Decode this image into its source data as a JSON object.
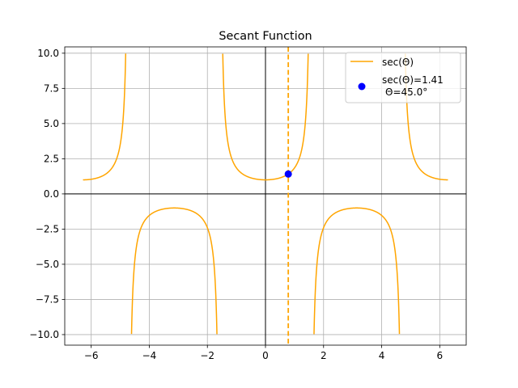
{
  "chart_data": {
    "type": "line",
    "title": "Secant Function",
    "xlabel": "",
    "ylabel": "",
    "xlim": [
      -6.911,
      6.911
    ],
    "ylim": [
      -10.75,
      10.45
    ],
    "grid": true,
    "legend_position": "top-right",
    "x_ticks": [
      -6,
      -4,
      -2,
      0,
      2,
      4,
      6
    ],
    "x_tick_labels": [
      "−6",
      "−4",
      "−2",
      "0",
      "2",
      "4",
      "6"
    ],
    "y_ticks": [
      10,
      7.5,
      5,
      2.5,
      0,
      -2.5,
      -5,
      -7.5,
      -10
    ],
    "y_tick_labels": [
      "10.0",
      "7.5",
      "5.0",
      "2.5",
      "0.0",
      "−2.5",
      "−5.0",
      "−7.5",
      "−10.0"
    ],
    "series": [
      {
        "name": "sec(Θ)",
        "function": "sec",
        "x_range": [
          -6.283,
          6.283
        ],
        "clip_abs_y": 10,
        "color": "#ffa500"
      }
    ],
    "marker": {
      "label_line1": "sec(Θ)=1.41",
      "label_line2": "Θ=45.0°",
      "x": 0.785,
      "y": 1.414,
      "color": "#0000ff"
    },
    "vline": {
      "x": 0.785,
      "color": "#ffa500",
      "style": "dashed"
    }
  }
}
